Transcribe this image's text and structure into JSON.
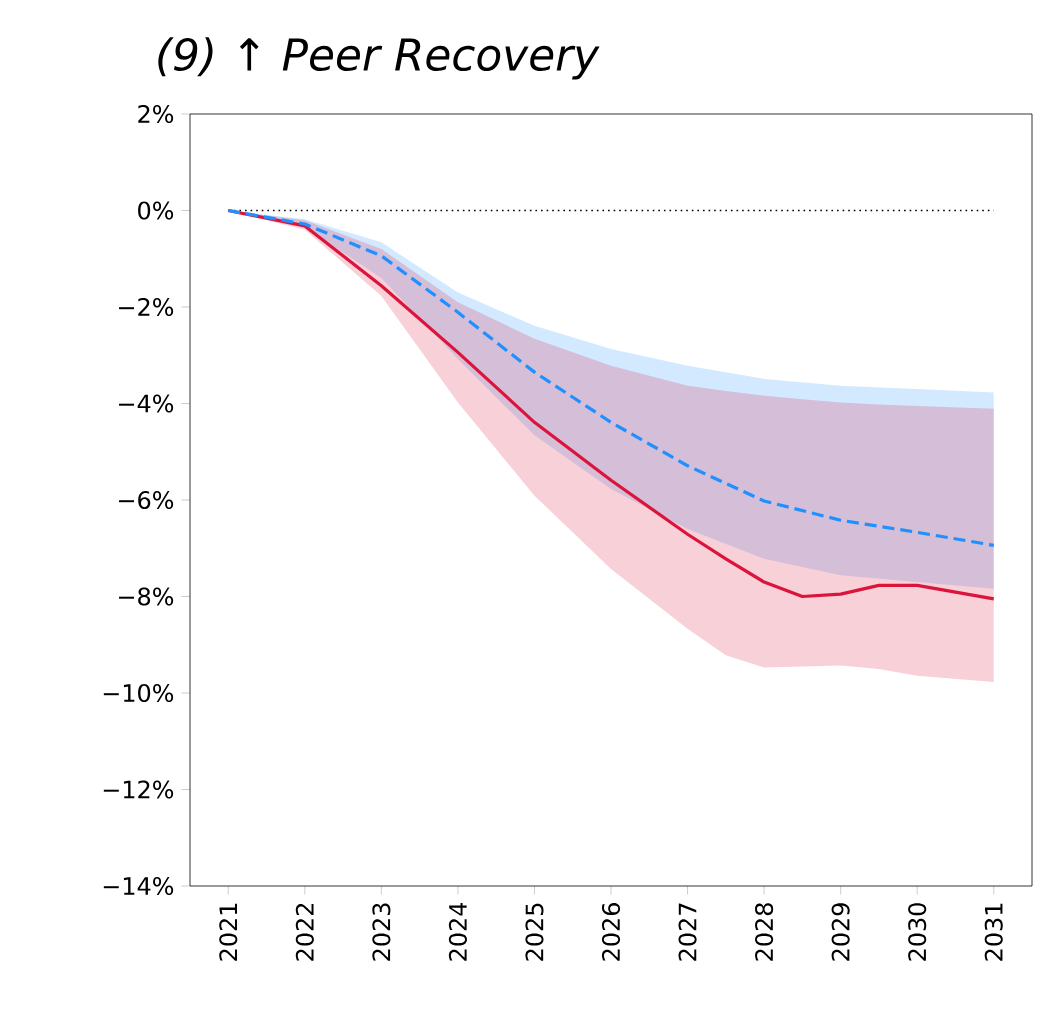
{
  "chart_data": {
    "type": "line",
    "title": "(9)  ↑ Peer Recovery",
    "xlim": [
      2020.5,
      2031.5
    ],
    "xticks": [
      2021,
      2022,
      2023,
      2024,
      2025,
      2026,
      2027,
      2028,
      2029,
      2030,
      2031
    ],
    "ylim": [
      -14,
      2
    ],
    "yticks": [
      {
        "value": -14,
        "label": "−14%"
      },
      {
        "value": -12,
        "label": "−12%"
      },
      {
        "value": -10,
        "label": "−10%"
      },
      {
        "value": -8,
        "label": "−8%"
      },
      {
        "value": -6,
        "label": "−6%"
      },
      {
        "value": -4,
        "label": "−4%"
      },
      {
        "value": -2,
        "label": "−2%"
      },
      {
        "value": 0,
        "label": "0%"
      },
      {
        "value": 2,
        "label": "2%"
      }
    ],
    "grid": false,
    "ref_lines": [
      {
        "axis": "y",
        "value": 0,
        "color": "#000000",
        "line_style": "dotted"
      }
    ],
    "series": [
      {
        "color": "#1e90ff",
        "line_style": "dashed",
        "x": [
          2021,
          2022,
          2023,
          2024,
          2025,
          2026,
          2027,
          2028,
          2029,
          2030,
          2031
        ],
        "values": [
          0,
          -0.28,
          -0.94,
          -2.11,
          -3.35,
          -4.39,
          -5.29,
          -6.02,
          -6.42,
          -6.67,
          -6.94
        ],
        "upper": [
          0,
          -0.18,
          -0.66,
          -1.7,
          -2.39,
          -2.87,
          -3.22,
          -3.49,
          -3.63,
          -3.7,
          -3.77
        ],
        "lower": [
          0,
          -0.35,
          -1.4,
          -3.08,
          -4.66,
          -5.77,
          -6.6,
          -7.22,
          -7.56,
          -7.7,
          -7.84
        ]
      },
      {
        "color": "#dc143c",
        "line_style": "solid",
        "x": [
          2021,
          2022,
          2023,
          2024,
          2025,
          2026,
          2027,
          2027.5,
          2028,
          2028.5,
          2029,
          2029.5,
          2030,
          2031
        ],
        "values": [
          0,
          -0.32,
          -1.56,
          -2.94,
          -4.39,
          -5.59,
          -6.71,
          -7.22,
          -7.7,
          -8.0,
          -7.95,
          -7.77,
          -7.77,
          -8.05
        ],
        "upper": [
          0,
          -0.2,
          -0.8,
          -1.9,
          -2.66,
          -3.22,
          -3.63,
          -3.74,
          -3.84,
          -3.91,
          -3.98,
          -4.02,
          -4.05,
          -4.11
        ],
        "lower": [
          0,
          -0.4,
          -1.77,
          -3.98,
          -5.91,
          -7.43,
          -8.67,
          -9.22,
          -9.47,
          -9.45,
          -9.43,
          -9.5,
          -9.64,
          -9.77
        ]
      }
    ]
  }
}
